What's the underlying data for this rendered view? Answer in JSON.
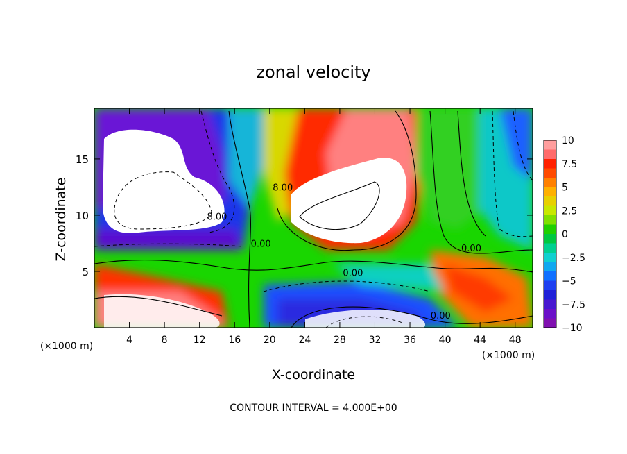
{
  "chart_data": {
    "type": "heatmap",
    "title": "zonal velocity",
    "xlabel": "X-coordinate",
    "ylabel": "Z-coordinate",
    "x_unit_left": "(×1000 m)",
    "x_unit_right": "(×1000 m)",
    "footer": "CONTOUR INTERVAL = 4.000E+00",
    "xlim": [
      0,
      50
    ],
    "ylim": [
      0,
      19.5
    ],
    "xticks": [
      4,
      8,
      12,
      16,
      20,
      24,
      28,
      32,
      36,
      40,
      44,
      48
    ],
    "yticks": [
      5,
      10,
      15
    ],
    "colorbar": {
      "range": [
        -10,
        10
      ],
      "ticks": [
        10,
        7.5,
        5,
        2.5,
        0,
        -2.5,
        -5,
        -7.5,
        -10
      ],
      "tick_labels": [
        "10",
        "7.5",
        "5",
        "2.5",
        "0",
        "−2.5",
        "−5",
        "−7.5",
        "−10"
      ]
    },
    "contour_labels": [
      {
        "text": "8.00",
        "x": 21.5,
        "z": 12.2
      },
      {
        "text": "8.00",
        "x": 14,
        "z": 9.6
      },
      {
        "text": "0.00",
        "x": 19,
        "z": 7.2
      },
      {
        "text": "0.00",
        "x": 29.5,
        "z": 4.6
      },
      {
        "text": "0.00",
        "x": 43,
        "z": 6.8
      },
      {
        "text": "0.00",
        "x": 39.5,
        "z": 0.8
      }
    ]
  }
}
